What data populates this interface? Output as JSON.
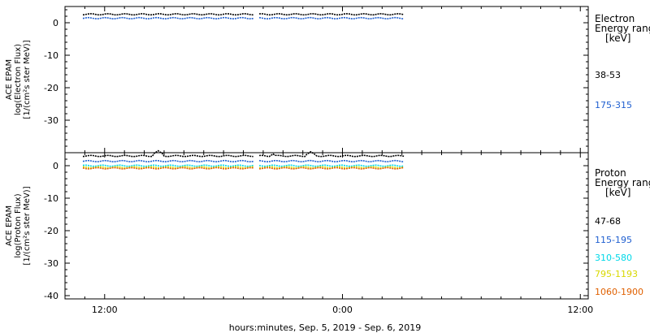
{
  "chart_data": [
    {
      "type": "line",
      "ylabel": [
        "ACE EPAM",
        "log(Electron Flux)",
        "[1/(cm²s ster MeV)]"
      ],
      "ylim": [
        -40,
        5
      ],
      "yticks": [
        0,
        -10,
        -20,
        -30
      ],
      "legend_title": [
        "Electron",
        "Energy ranges",
        "[keV]"
      ],
      "series": [
        {
          "name": "38-53",
          "color": "#000000",
          "level": 2.6,
          "segments": [
            [
              -13.1,
              -4.5
            ],
            [
              -4.2,
              3.1
            ]
          ]
        },
        {
          "name": "175-315",
          "color": "#1f5fd0",
          "level": 1.4,
          "segments": [
            [
              -13.1,
              -4.5
            ],
            [
              -4.2,
              3.1
            ]
          ]
        }
      ]
    },
    {
      "type": "line",
      "ylabel": [
        "ACE EPAM",
        "log(Proton Flux)",
        "[1/(cm²s ster MeV)]"
      ],
      "ylim": [
        -41,
        4
      ],
      "yticks": [
        0,
        -10,
        -20,
        -30,
        -40
      ],
      "legend_title": [
        "Proton",
        "Energy ranges",
        "[keV]"
      ],
      "series": [
        {
          "name": "47-68",
          "color": "#000000",
          "level": 3.0,
          "segments": [
            [
              -13.1,
              -4.5
            ],
            [
              -4.2,
              3.1
            ]
          ],
          "spikes": [
            [
              -9.3,
              4.6
            ],
            [
              -1.6,
              4.3
            ],
            [
              -3.5,
              3.6
            ]
          ]
        },
        {
          "name": "115-195",
          "color": "#1f5fd0",
          "level": 1.4,
          "segments": [
            [
              -13.1,
              -4.5
            ],
            [
              -4.2,
              3.1
            ]
          ]
        },
        {
          "name": "310-580",
          "color": "#00d8e8",
          "level": 0.0,
          "segments": [
            [
              -13.1,
              -4.5
            ],
            [
              -4.2,
              3.1
            ]
          ]
        },
        {
          "name": "795-1193",
          "color": "#d8d800",
          "level": -0.5,
          "segments": [
            [
              -13.1,
              -4.5
            ],
            [
              -4.2,
              3.1
            ]
          ]
        },
        {
          "name": "1060-1900",
          "color": "#e06000",
          "level": -0.8,
          "segments": [
            [
              -13.1,
              -4.5
            ],
            [
              -4.2,
              3.1
            ]
          ]
        }
      ]
    }
  ],
  "x_axis": {
    "range_hours": [
      -14,
      12.4
    ],
    "ticks": [
      {
        "hour": -12,
        "label": "12:00"
      },
      {
        "hour": 0,
        "label": "0:00"
      },
      {
        "hour": 12,
        "label": "12:00"
      }
    ],
    "xlabel": "hours:minutes, Sep.  5, 2019 - Sep.  6, 2019"
  }
}
